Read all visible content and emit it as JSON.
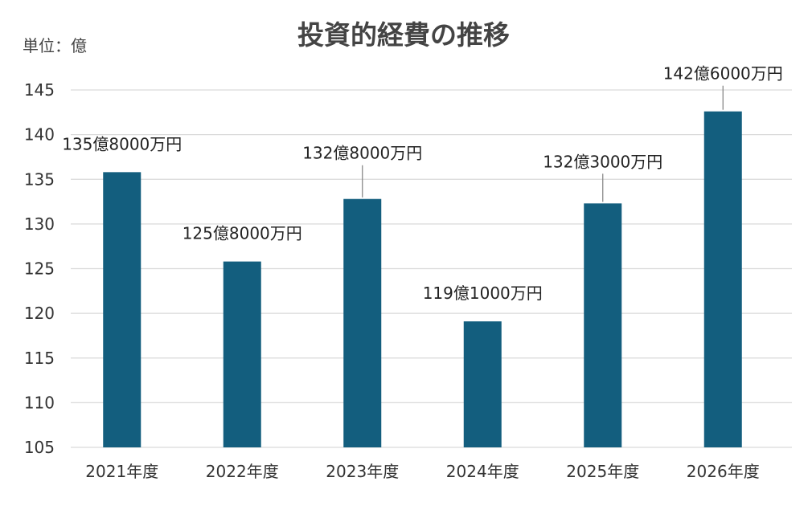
{
  "chart_data": {
    "type": "bar",
    "title": "投資的経費の推移",
    "unit_label": "単位：億",
    "categories": [
      "2021年度",
      "2022年度",
      "2023年度",
      "2024年度",
      "2025年度",
      "2026年度"
    ],
    "values": [
      135.8,
      125.8,
      132.8,
      119.1,
      132.3,
      142.6
    ],
    "data_labels": [
      "135億8000万円",
      "125億8000万円",
      "132億8000万円",
      "119億1000万円",
      "132億3000万円",
      "142億6000万円"
    ],
    "ylim": [
      105,
      145
    ],
    "yticks": [
      105,
      110,
      115,
      120,
      125,
      130,
      135,
      140,
      145
    ],
    "xlabel": "",
    "ylabel": "",
    "grid": true,
    "bar_color": "#135e7e"
  }
}
